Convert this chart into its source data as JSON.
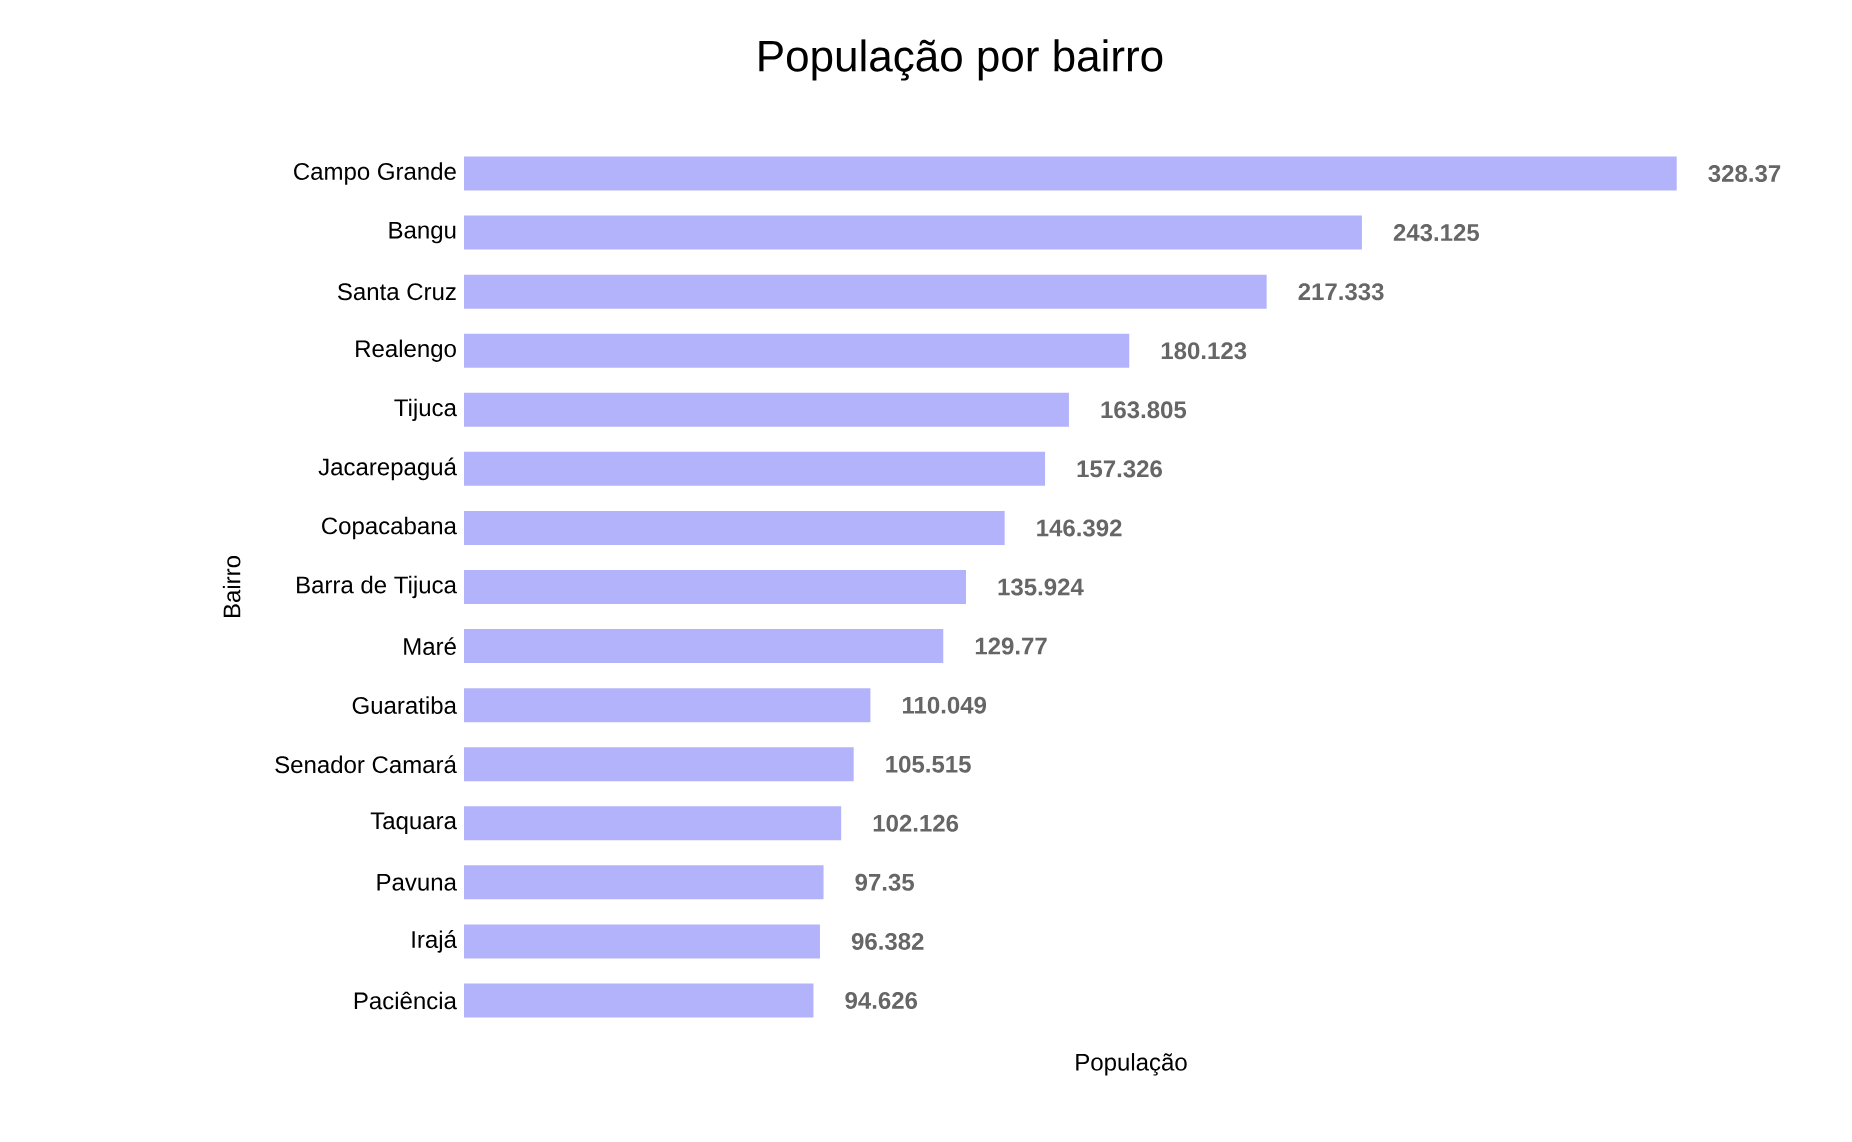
{
  "chart_data": {
    "type": "bar",
    "orientation": "horizontal",
    "title": "População por bairro",
    "xlabel": "População",
    "ylabel": "Bairro",
    "categories": [
      "Campo Grande",
      "Bangu",
      "Santa Cruz",
      "Realengo",
      "Tijuca",
      "Jacarepaguá",
      "Copacabana",
      "Barra de Tijuca",
      "Maré",
      "Guaratiba",
      "Senador Camará",
      "Taquara",
      "Pavuna",
      "Irajá",
      "Paciência"
    ],
    "values": [
      328.37,
      243.125,
      217.333,
      180.123,
      163.805,
      157.326,
      146.392,
      135.924,
      129.77,
      110.049,
      105.515,
      102.126,
      97.35,
      96.382,
      94.626
    ],
    "color": "#b3b3fb",
    "data_labels": true,
    "tick_labels": "y"
  }
}
